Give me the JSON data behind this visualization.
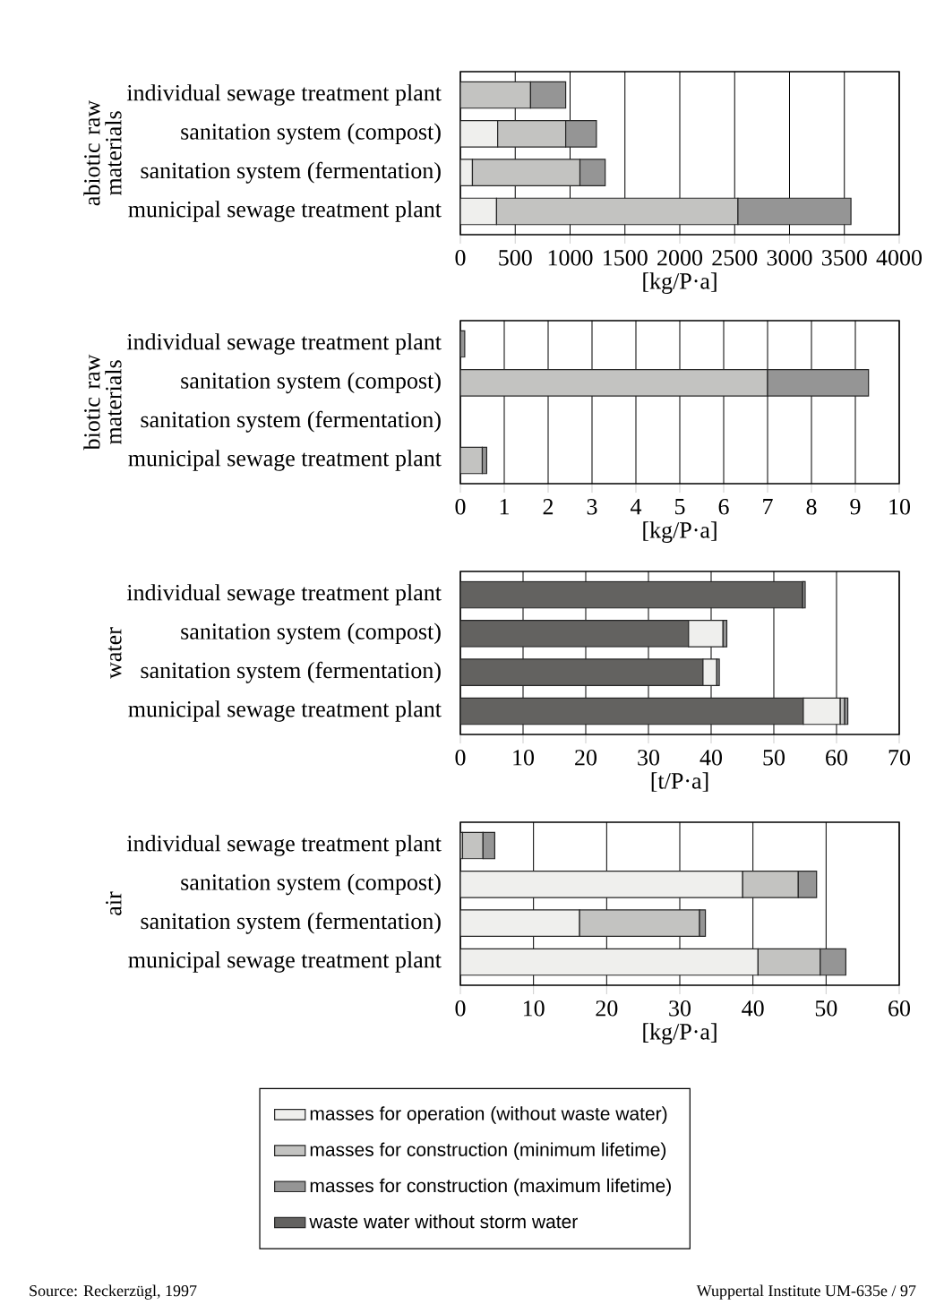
{
  "chart_data": [
    {
      "type": "bar",
      "orientation": "horizontal",
      "stacked": true,
      "ylabel": "abiotic raw materials",
      "xlabel": "[kg/P·a]",
      "categories": [
        "individual sewage treatment plant",
        "sanitation system (compost)",
        "sanitation system (fermentation)",
        "municipal sewage treatment plant"
      ],
      "xlim": [
        0,
        4000
      ],
      "xticks": [
        0,
        500,
        1000,
        1500,
        2000,
        2500,
        3000,
        3500,
        4000
      ],
      "grid": "x",
      "series": [
        {
          "color": "#efefed",
          "values": [
            null,
            340,
            110,
            330
          ]
        },
        {
          "color": "#c3c3c1",
          "values": [
            640,
            620,
            980,
            2200
          ]
        },
        {
          "color": "#959595",
          "values": [
            320,
            280,
            230,
            1030
          ]
        }
      ]
    },
    {
      "type": "bar",
      "orientation": "horizontal",
      "stacked": true,
      "ylabel": "biotic raw materials",
      "xlabel": "[kg/P·a]",
      "categories": [
        "individual sewage treatment plant",
        "sanitation system (compost)",
        "sanitation system (fermentation)",
        "municipal sewage treatment plant"
      ],
      "xlim": [
        0,
        10
      ],
      "xticks": [
        0,
        1,
        2,
        3,
        4,
        5,
        6,
        7,
        8,
        9,
        10
      ],
      "grid": "x",
      "series": [
        {
          "color": "#c3c3c1",
          "values": [
            null,
            7.0,
            null,
            0.5
          ]
        },
        {
          "color": "#959595",
          "values": [
            0.1,
            2.3,
            null,
            0.1
          ]
        }
      ]
    },
    {
      "type": "bar",
      "orientation": "horizontal",
      "stacked": true,
      "ylabel": "water",
      "xlabel": "[t/P·a]",
      "categories": [
        "individual sewage treatment plant",
        "sanitation system (compost)",
        "sanitation system (fermentation)",
        "municipal sewage treatment plant"
      ],
      "xlim": [
        0,
        70
      ],
      "xticks": [
        0,
        10,
        20,
        30,
        40,
        50,
        60,
        70
      ],
      "grid": "x",
      "series": [
        {
          "color": "#636260",
          "values": [
            54.6,
            36.4,
            38.7,
            54.7
          ]
        },
        {
          "color": "#efefed",
          "values": [
            null,
            5.5,
            2.2,
            5.9
          ]
        },
        {
          "color": "#c3c3c1",
          "values": [
            null,
            null,
            null,
            0.7
          ]
        },
        {
          "color": "#959595",
          "values": [
            0.4,
            0.6,
            0.4,
            0.5
          ]
        }
      ]
    },
    {
      "type": "bar",
      "orientation": "horizontal",
      "stacked": true,
      "ylabel": "air",
      "xlabel": "[kg/P·a]",
      "categories": [
        "individual sewage treatment plant",
        "sanitation system (compost)",
        "sanitation system (fermentation)",
        "municipal sewage treatment plant"
      ],
      "xlim": [
        0,
        60
      ],
      "xticks": [
        0,
        10,
        20,
        30,
        40,
        50,
        60
      ],
      "grid": "x",
      "legend": "bottom",
      "annotations": [
        "Source: Reckerzügl, 1997",
        "Wuppertal Institute   UM-635e / 97"
      ],
      "series": [
        {
          "name": "masses for operation (without waste water)",
          "color": "#efefed",
          "values": [
            0.3,
            38.6,
            16.3,
            40.7
          ]
        },
        {
          "name": "masses for construction (minimum lifetime)",
          "color": "#c3c3c1",
          "values": [
            2.8,
            7.6,
            16.4,
            8.5
          ]
        },
        {
          "name": "masses for construction (maximum lifetime)",
          "color": "#959595",
          "values": [
            1.6,
            2.5,
            0.8,
            3.5
          ]
        },
        {
          "name": "waste water without storm water",
          "color": "#636260",
          "values": [
            null,
            null,
            null,
            null
          ]
        }
      ]
    }
  ]
}
